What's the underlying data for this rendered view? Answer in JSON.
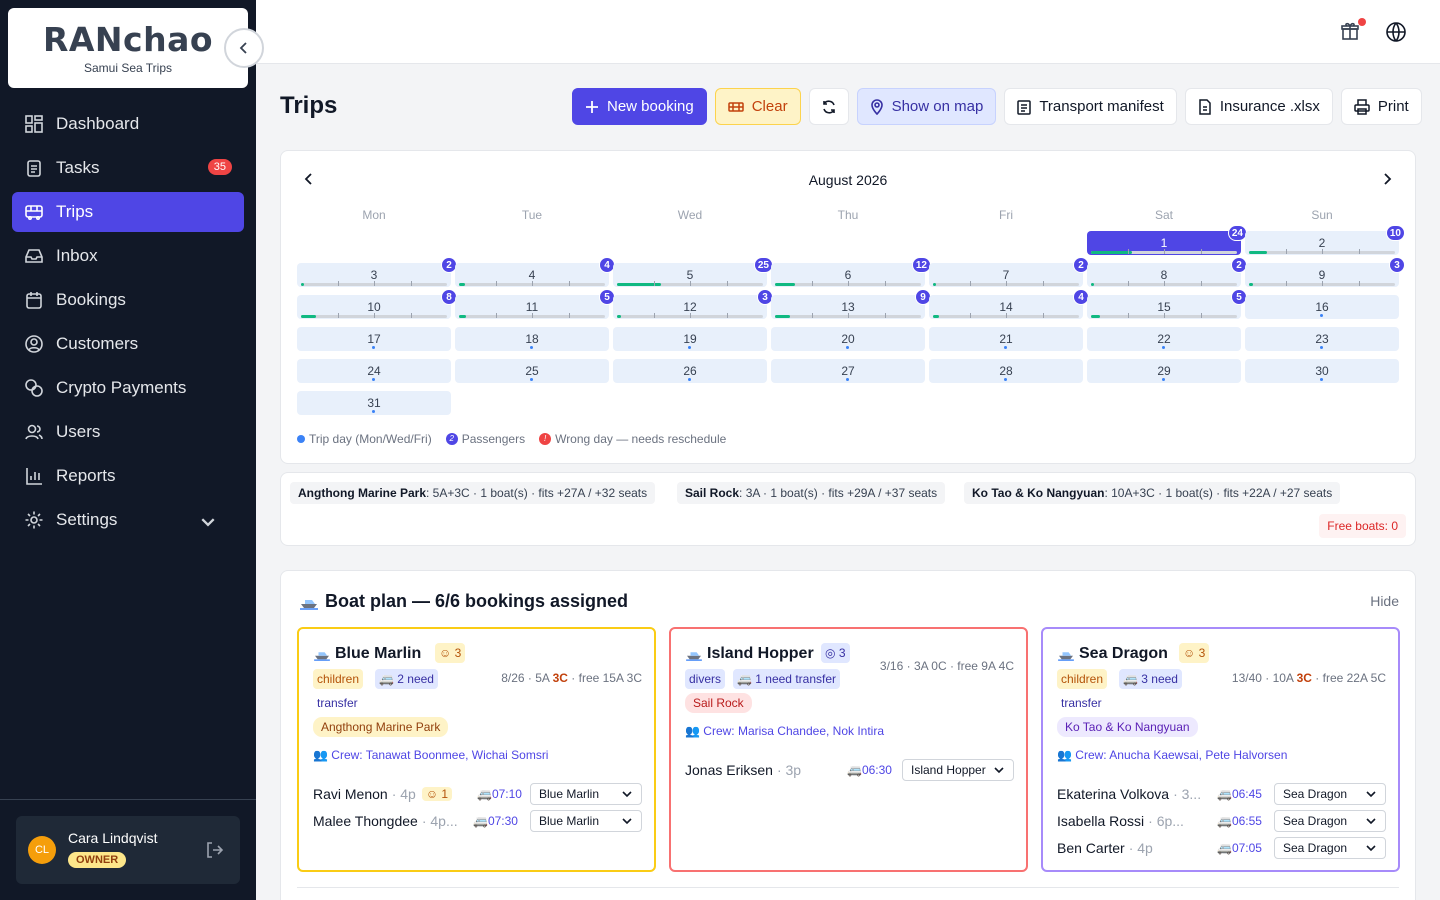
{
  "sidebar": {
    "logo": "RANchao",
    "subtitle": "Samui Sea Trips",
    "items": [
      {
        "label": "Dashboard"
      },
      {
        "label": "Tasks",
        "badge": "35"
      },
      {
        "label": "Trips"
      },
      {
        "label": "Inbox"
      },
      {
        "label": "Bookings"
      },
      {
        "label": "Customers"
      },
      {
        "label": "Crypto Payments"
      },
      {
        "label": "Users"
      },
      {
        "label": "Reports"
      },
      {
        "label": "Settings"
      }
    ],
    "user": {
      "initials": "CL",
      "name": "Cara Lindqvist",
      "role": "OWNER"
    }
  },
  "page": {
    "title": "Trips"
  },
  "toolbar": {
    "new_booking": "New booking",
    "clear": "Clear",
    "show_on_map": "Show on map",
    "transport_manifest": "Transport manifest",
    "insurance": "Insurance .xlsx",
    "print": "Print"
  },
  "calendar": {
    "month": "August 2026",
    "weekdays": [
      "Mon",
      "Tue",
      "Wed",
      "Thu",
      "Fri",
      "Sat",
      "Sun"
    ],
    "legend": {
      "trip_day": "Trip day (Mon/Wed/Fri)",
      "passengers": "Passengers",
      "wrong_day": "Wrong day — needs reschedule",
      "pax_sample": "2",
      "wrong_sample": "!"
    },
    "days": [
      {
        "d": "1",
        "pax": "24",
        "fill": 0.28,
        "selected": true
      },
      {
        "d": "2",
        "pax": "10",
        "fill": 0.12
      },
      {
        "d": "3",
        "pax": "2",
        "fill": 0.02
      },
      {
        "d": "4",
        "pax": "4",
        "fill": 0.04
      },
      {
        "d": "5",
        "pax": "25",
        "fill": 0.3
      },
      {
        "d": "6",
        "pax": "12",
        "fill": 0.14
      },
      {
        "d": "7",
        "pax": "2",
        "fill": 0.02
      },
      {
        "d": "8",
        "pax": "2",
        "fill": 0.02
      },
      {
        "d": "9",
        "pax": "3",
        "fill": 0.03
      },
      {
        "d": "10",
        "pax": "8",
        "fill": 0.1
      },
      {
        "d": "11",
        "pax": "5",
        "fill": 0.05
      },
      {
        "d": "12",
        "pax": "3",
        "fill": 0.03
      },
      {
        "d": "13",
        "pax": "9",
        "fill": 0.1
      },
      {
        "d": "14",
        "pax": "4",
        "fill": 0.04
      },
      {
        "d": "15",
        "pax": "5",
        "fill": 0.06
      },
      {
        "d": "16"
      },
      {
        "d": "17"
      },
      {
        "d": "18"
      },
      {
        "d": "19"
      },
      {
        "d": "20"
      },
      {
        "d": "21"
      },
      {
        "d": "22"
      },
      {
        "d": "23"
      },
      {
        "d": "24"
      },
      {
        "d": "25"
      },
      {
        "d": "26"
      },
      {
        "d": "27"
      },
      {
        "d": "28"
      },
      {
        "d": "29"
      },
      {
        "d": "30"
      },
      {
        "d": "31"
      }
    ]
  },
  "destinations": {
    "chips": [
      {
        "name": "Angthong Marine Park",
        "info": ": 5A+3C · 1 boat(s) · fits +27A / +32 seats"
      },
      {
        "name": "Sail Rock",
        "info": ": 3A · 1 boat(s) · fits +29A / +37 seats"
      },
      {
        "name": "Ko Tao & Ko Nangyuan",
        "info": ": 10A+3C · 1 boat(s) · fits +22A / +27 seats"
      }
    ],
    "free_boats": "Free boats: 0"
  },
  "plan": {
    "title": "Boat plan — 6/6 bookings assigned",
    "hide": "Hide",
    "boats": [
      {
        "name": "Blue Marlin",
        "kid_count": "3",
        "kid_word": "children",
        "need": "2 need",
        "need_word": "transfer",
        "stats_a": "8/26 · 5A ",
        "stats_c": "3C",
        "stats_b": " · free 15A 3C",
        "destination": "Angthong Marine Park",
        "crew": "Crew: Tanawat Boonmee, Wichai Somsri",
        "color": "#facc15",
        "pax": [
          {
            "name": "Ravi Menon",
            "meta": "· 4p",
            "kids": "1",
            "time": "07:10",
            "boat": "Blue Marlin"
          },
          {
            "name": "Malee Thongdee",
            "meta": "· 4p...",
            "kids": "",
            "time": "07:30",
            "boat": "Blue Marlin"
          }
        ]
      },
      {
        "name": "Island Hopper",
        "kid_count": "3",
        "kid_word": "divers",
        "need": "1 need transfer",
        "need_word": "",
        "stats_a": "3/16 · 3A 0C · free 9A 4C",
        "stats_c": "",
        "stats_b": "",
        "destination": "Sail Rock",
        "crew": "Crew: Marisa Chandee, Nok Intira",
        "color": "#f87171",
        "pax": [
          {
            "name": "Jonas Eriksen",
            "meta": "· 3p",
            "kids": "",
            "time": "06:30",
            "boat": "Island Hopper"
          }
        ]
      },
      {
        "name": "Sea Dragon",
        "kid_count": "3",
        "kid_word": "children",
        "need": "3 need",
        "need_word": "transfer",
        "stats_a": "13/40 · 10A ",
        "stats_c": "3C",
        "stats_b": " · free 22A 5C",
        "destination": "Ko Tao & Ko Nangyuan",
        "crew": "Crew: Anucha Kaewsai, Pete Halvorsen",
        "color": "#a78bfa",
        "pax": [
          {
            "name": "Ekaterina Volkova",
            "meta": "· 3...",
            "kids": "",
            "time": "06:45",
            "boat": "Sea Dragon"
          },
          {
            "name": "Isabella Rossi",
            "meta": "· 6p...",
            "kids": "",
            "time": "06:55",
            "boat": "Sea Dragon"
          },
          {
            "name": "Ben Carter",
            "meta": "· 4p",
            "kids": "",
            "time": "07:05",
            "boat": "Sea Dragon"
          }
        ]
      }
    ]
  }
}
